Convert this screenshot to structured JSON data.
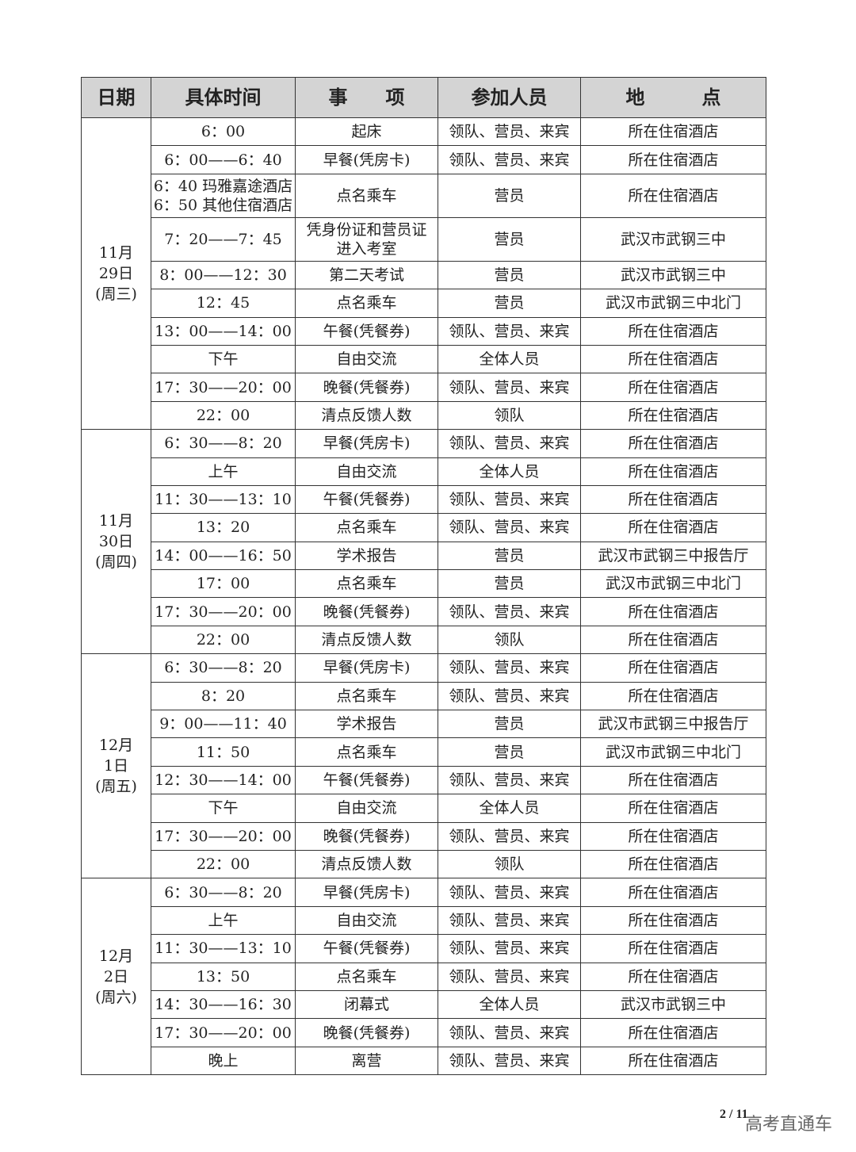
{
  "headers": [
    "日期",
    "具体时间",
    "事　　项",
    "参加人员",
    "地　　　点"
  ],
  "groups": [
    {
      "date": [
        "11月",
        "29日",
        "(周三)"
      ],
      "rows": [
        [
          "6：00",
          "起床",
          "领队、营员、来宾",
          "所在住宿酒店"
        ],
        [
          "6：00——6：40",
          "早餐(凭房卡)",
          "领队、营员、来宾",
          "所在住宿酒店"
        ],
        [
          "6：40 玛雅嘉途酒店\n6：50 其他住宿酒店",
          "点名乘车",
          "营员",
          "所在住宿酒店"
        ],
        [
          "7：20——7：45",
          "凭身份证和营员证\n进入考室",
          "营员",
          "武汉市武钢三中"
        ],
        [
          "8：00——12：30",
          "第二天考试",
          "营员",
          "武汉市武钢三中"
        ],
        [
          "12：45",
          "点名乘车",
          "营员",
          "武汉市武钢三中北门"
        ],
        [
          "13：00——14：00",
          "午餐(凭餐券)",
          "领队、营员、来宾",
          "所在住宿酒店"
        ],
        [
          "下午",
          "自由交流",
          "全体人员",
          "所在住宿酒店"
        ],
        [
          "17：30——20：00",
          "晚餐(凭餐券)",
          "领队、营员、来宾",
          "所在住宿酒店"
        ],
        [
          "22：00",
          "清点反馈人数",
          "领队",
          "所在住宿酒店"
        ]
      ]
    },
    {
      "date": [
        "11月",
        "30日",
        "(周四)"
      ],
      "rows": [
        [
          "6：30——8：20",
          "早餐(凭房卡)",
          "领队、营员、来宾",
          "所在住宿酒店"
        ],
        [
          "上午",
          "自由交流",
          "全体人员",
          "所在住宿酒店"
        ],
        [
          "11：30——13：10",
          "午餐(凭餐券)",
          "领队、营员、来宾",
          "所在住宿酒店"
        ],
        [
          "13：20",
          "点名乘车",
          "领队、营员、来宾",
          "所在住宿酒店"
        ],
        [
          "14：00——16：50",
          "学术报告",
          "营员",
          "武汉市武钢三中报告厅"
        ],
        [
          "17：00",
          "点名乘车",
          "营员",
          "武汉市武钢三中北门"
        ],
        [
          "17：30——20：00",
          "晚餐(凭餐券)",
          "领队、营员、来宾",
          "所在住宿酒店"
        ],
        [
          "22：00",
          "清点反馈人数",
          "领队",
          "所在住宿酒店"
        ]
      ]
    },
    {
      "date": [
        "12月",
        "1日",
        "(周五)"
      ],
      "rows": [
        [
          "6：30——8：20",
          "早餐(凭房卡)",
          "领队、营员、来宾",
          "所在住宿酒店"
        ],
        [
          "8：20",
          "点名乘车",
          "领队、营员、来宾",
          "所在住宿酒店"
        ],
        [
          "9：00——11：40",
          "学术报告",
          "营员",
          "武汉市武钢三中报告厅"
        ],
        [
          "11：50",
          "点名乘车",
          "营员",
          "武汉市武钢三中北门"
        ],
        [
          "12：30——14：00",
          "午餐(凭餐券)",
          "领队、营员、来宾",
          "所在住宿酒店"
        ],
        [
          "下午",
          "自由交流",
          "全体人员",
          "所在住宿酒店"
        ],
        [
          "17：30——20：00",
          "晚餐(凭餐券)",
          "领队、营员、来宾",
          "所在住宿酒店"
        ],
        [
          "22：00",
          "清点反馈人数",
          "领队",
          "所在住宿酒店"
        ]
      ]
    },
    {
      "date": [
        "12月",
        "2日",
        "(周六)"
      ],
      "rows": [
        [
          "6：30——8：20",
          "早餐(凭房卡)",
          "领队、营员、来宾",
          "所在住宿酒店"
        ],
        [
          "上午",
          "自由交流",
          "领队、营员、来宾",
          "所在住宿酒店"
        ],
        [
          "11：30——13：10",
          "午餐(凭餐券)",
          "领队、营员、来宾",
          "所在住宿酒店"
        ],
        [
          "13：50",
          "点名乘车",
          "领队、营员、来宾",
          "所在住宿酒店"
        ],
        [
          "14：30——16：30",
          "闭幕式",
          "全体人员",
          "武汉市武钢三中"
        ],
        [
          "17：30——20：00",
          "晚餐(凭餐券)",
          "领队、营员、来宾",
          "所在住宿酒店"
        ],
        [
          "晚上",
          "离营",
          "领队、营员、来宾",
          "所在住宿酒店"
        ]
      ]
    }
  ],
  "footer": {
    "page": "2 / 11",
    "watermark": "高考直通车"
  }
}
